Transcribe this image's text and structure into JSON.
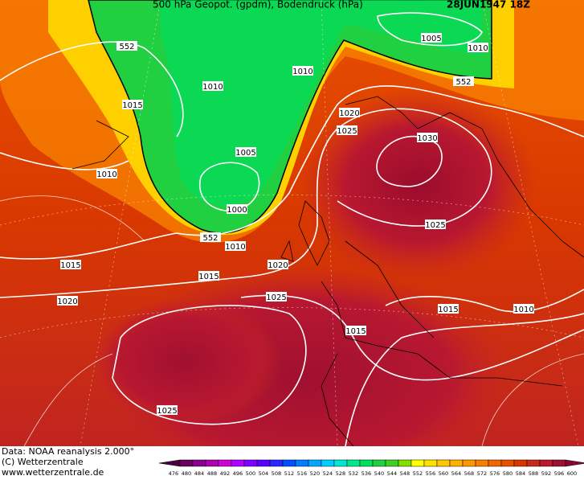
{
  "header": {
    "title": "500 hPa Geopot. (gpdm), Bodendruck (hPa)",
    "date": "28JUN1947 18Z"
  },
  "isobar_labels": [
    "552",
    "1005",
    "1010",
    "552",
    "1015",
    "1010",
    "1010",
    "1020",
    "1025",
    "1030",
    "1005",
    "1010",
    "1000",
    "552",
    "1010",
    "1015",
    "1020",
    "1015",
    "1025",
    "1020",
    "1025",
    "1015",
    "1010",
    "1015",
    "1025"
  ],
  "legend": {
    "values": [
      476,
      480,
      484,
      488,
      492,
      496,
      500,
      504,
      508,
      512,
      516,
      520,
      524,
      528,
      532,
      536,
      540,
      544,
      548,
      552,
      556,
      560,
      564,
      568,
      572,
      576,
      580,
      584,
      588,
      592,
      596,
      600
    ],
    "colors": [
      "#4b0040",
      "#6a0060",
      "#8a0090",
      "#b000b0",
      "#d000d8",
      "#b000ff",
      "#8000ff",
      "#5a00ff",
      "#2a28ff",
      "#0050ff",
      "#0080ff",
      "#00a8ff",
      "#00d0ff",
      "#00e8d0",
      "#00e890",
      "#00e060",
      "#20d040",
      "#40d020",
      "#80e000",
      "#ffff00",
      "#ffe000",
      "#ffc800",
      "#ffb000",
      "#ff9800",
      "#f88000",
      "#f06800",
      "#e85000",
      "#d83800",
      "#c82820",
      "#b81830",
      "#a01030",
      "#880a30"
    ]
  },
  "footer": {
    "line1": "Data: NOAA reanalysis 2.000°",
    "line2": "(C) Wetterzentrale",
    "line3": "www.wetterzentrale.de"
  }
}
